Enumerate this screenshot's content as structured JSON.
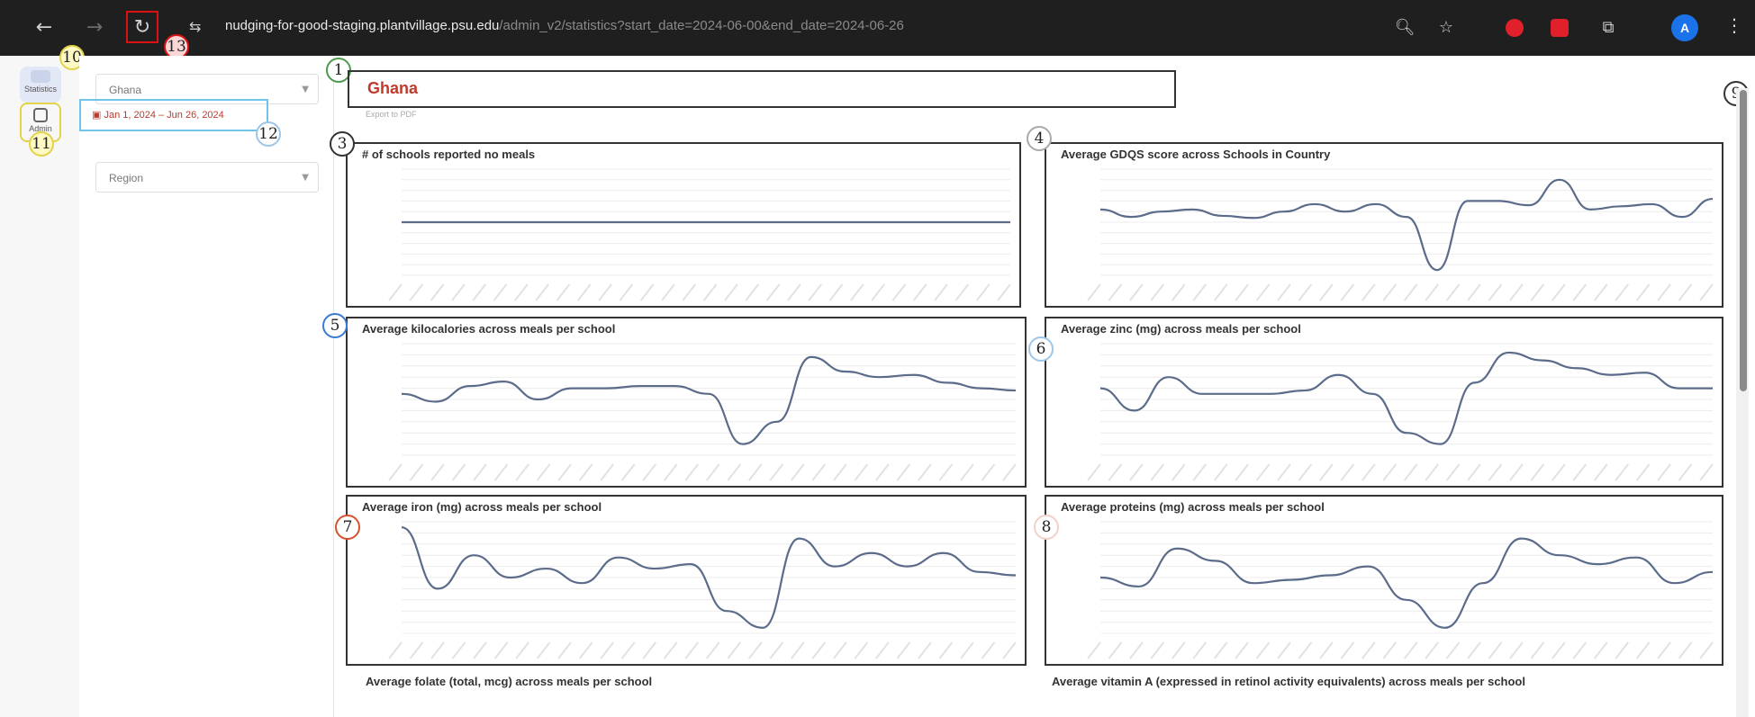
{
  "browser": {
    "url_host": "nudging-for-good-staging.plantvillage.psu.edu",
    "url_path": "/admin_v2/statistics?start_date=2024-06-00&end_date=2024-06-26",
    "profile_initial": "A"
  },
  "rail": {
    "items": [
      {
        "label": "Statistics"
      },
      {
        "label": "Admin"
      }
    ]
  },
  "filters": {
    "country": {
      "value": "Ghana"
    },
    "date_range": {
      "value": "Jan 1, 2024 – Jun 26, 2024"
    },
    "region": {
      "value": "Region"
    }
  },
  "main": {
    "country": "Ghana",
    "country_sub": "Export to PDF"
  },
  "badges": [
    "1",
    "3",
    "4",
    "5",
    "6",
    "7",
    "8",
    "9",
    "10",
    "11",
    "12",
    "13"
  ],
  "chart_data": [
    {
      "type": "line",
      "title": "# of schools reported no meals",
      "values": [
        0.5,
        0.5,
        0.5,
        0.5,
        0.5,
        0.5,
        0.5,
        0.5,
        0.5,
        0.5,
        0.5,
        0.5,
        0.5,
        0.5,
        0.5,
        0.5,
        0.5,
        0.5,
        0.5,
        0.5,
        0.5,
        0.5,
        0.5,
        0.5,
        0.5
      ],
      "ylim": [
        0,
        1
      ]
    },
    {
      "type": "line",
      "title": "Average GDQS score across Schools in Country",
      "values": [
        0.62,
        0.55,
        0.6,
        0.62,
        0.56,
        0.54,
        0.6,
        0.67,
        0.6,
        0.67,
        0.55,
        0.05,
        0.7,
        0.7,
        0.66,
        0.9,
        0.62,
        0.65,
        0.67,
        0.55,
        0.72
      ],
      "ylim": [
        0,
        1
      ]
    },
    {
      "type": "line",
      "title": "Average kilocalories across meals per school",
      "values": [
        0.55,
        0.48,
        0.62,
        0.66,
        0.5,
        0.6,
        0.6,
        0.62,
        0.62,
        0.55,
        0.1,
        0.3,
        0.88,
        0.75,
        0.7,
        0.72,
        0.65,
        0.6,
        0.58
      ],
      "ylim": [
        0,
        1
      ]
    },
    {
      "type": "line",
      "title": "Average zinc (mg) across meals per school",
      "values": [
        0.6,
        0.4,
        0.7,
        0.55,
        0.55,
        0.55,
        0.58,
        0.72,
        0.55,
        0.2,
        0.1,
        0.65,
        0.92,
        0.85,
        0.78,
        0.72,
        0.74,
        0.6,
        0.6
      ],
      "ylim": [
        0,
        1
      ]
    },
    {
      "type": "line",
      "title": "Average iron (mg) across meals per school",
      "values": [
        0.95,
        0.4,
        0.7,
        0.5,
        0.58,
        0.45,
        0.68,
        0.58,
        0.62,
        0.2,
        0.05,
        0.85,
        0.6,
        0.72,
        0.6,
        0.72,
        0.55,
        0.52
      ],
      "ylim": [
        0,
        1
      ]
    },
    {
      "type": "line",
      "title": "Average proteins (mg) across meals per school",
      "values": [
        0.5,
        0.42,
        0.76,
        0.65,
        0.45,
        0.48,
        0.52,
        0.6,
        0.3,
        0.05,
        0.45,
        0.85,
        0.7,
        0.62,
        0.68,
        0.45,
        0.55
      ],
      "ylim": [
        0,
        1
      ]
    }
  ],
  "more_titles": {
    "folate": "Average folate (total, mcg) across meals per school",
    "vitamin_a": "Average vitamin A (expressed in retinol activity equivalents) across meals per school"
  }
}
